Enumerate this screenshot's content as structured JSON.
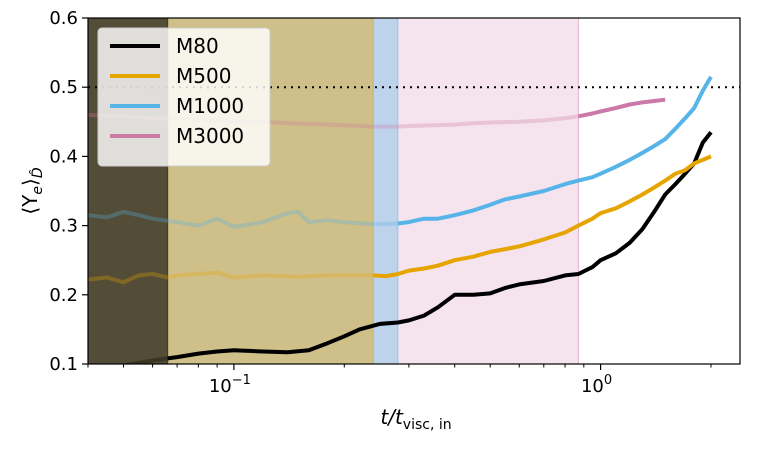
{
  "chart_data": {
    "type": "line",
    "xscale": "log",
    "xlim": [
      0.04,
      2.4
    ],
    "ylim": [
      0.1,
      0.6
    ],
    "xlabel_main": "t/t",
    "xlabel_sub": "visc, in",
    "ylabel_main": "⟨Y",
    "ylabel_sub_e": "e",
    "ylabel_sub_D": "D̂",
    "ylabel_close": "⟩",
    "x_ticks": [
      {
        "value": 0.1,
        "base": "10",
        "exp": "−1"
      },
      {
        "value": 1.0,
        "base": "10",
        "exp": "0"
      }
    ],
    "y_ticks": [
      "0.1",
      "0.2",
      "0.3",
      "0.4",
      "0.5",
      "0.6"
    ],
    "reference_line": {
      "y": 0.5,
      "style": "dotted",
      "color": "#000000"
    },
    "shaded_regions": [
      {
        "series": "M80",
        "x_end": 0.066,
        "color": "#000000",
        "opacity": 0.6
      },
      {
        "series": "M500",
        "x_end": 0.24,
        "color": "#e6a400",
        "opacity": 0.42
      },
      {
        "series": "M1000",
        "x_end": 0.28,
        "color": "#56b4e9",
        "opacity": 0.35
      },
      {
        "series": "M3000",
        "x_end": 0.87,
        "color": "#cc79a7",
        "opacity": 0.2
      }
    ],
    "series": [
      {
        "name": "M80",
        "color": "#000000",
        "points": [
          [
            0.04,
            0.093
          ],
          [
            0.05,
            0.098
          ],
          [
            0.06,
            0.105
          ],
          [
            0.07,
            0.11
          ],
          [
            0.08,
            0.115
          ],
          [
            0.09,
            0.118
          ],
          [
            0.1,
            0.12
          ],
          [
            0.12,
            0.118
          ],
          [
            0.14,
            0.117
          ],
          [
            0.16,
            0.12
          ],
          [
            0.18,
            0.13
          ],
          [
            0.2,
            0.14
          ],
          [
            0.22,
            0.15
          ],
          [
            0.25,
            0.158
          ],
          [
            0.28,
            0.16
          ],
          [
            0.3,
            0.163
          ],
          [
            0.33,
            0.17
          ],
          [
            0.36,
            0.182
          ],
          [
            0.4,
            0.2
          ],
          [
            0.45,
            0.2
          ],
          [
            0.5,
            0.202
          ],
          [
            0.55,
            0.21
          ],
          [
            0.6,
            0.215
          ],
          [
            0.7,
            0.22
          ],
          [
            0.8,
            0.228
          ],
          [
            0.87,
            0.23
          ],
          [
            0.95,
            0.24
          ],
          [
            1.0,
            0.25
          ],
          [
            1.1,
            0.26
          ],
          [
            1.2,
            0.275
          ],
          [
            1.3,
            0.295
          ],
          [
            1.4,
            0.32
          ],
          [
            1.5,
            0.345
          ],
          [
            1.6,
            0.36
          ],
          [
            1.7,
            0.375
          ],
          [
            1.8,
            0.39
          ],
          [
            1.9,
            0.42
          ],
          [
            2.0,
            0.435
          ]
        ]
      },
      {
        "name": "M500",
        "color": "#e6a400",
        "points": [
          [
            0.04,
            0.222
          ],
          [
            0.045,
            0.225
          ],
          [
            0.05,
            0.218
          ],
          [
            0.055,
            0.228
          ],
          [
            0.06,
            0.23
          ],
          [
            0.066,
            0.225
          ],
          [
            0.07,
            0.228
          ],
          [
            0.08,
            0.23
          ],
          [
            0.09,
            0.232
          ],
          [
            0.1,
            0.225
          ],
          [
            0.12,
            0.228
          ],
          [
            0.15,
            0.226
          ],
          [
            0.18,
            0.228
          ],
          [
            0.2,
            0.228
          ],
          [
            0.24,
            0.228
          ],
          [
            0.26,
            0.227
          ],
          [
            0.28,
            0.23
          ],
          [
            0.3,
            0.235
          ],
          [
            0.33,
            0.238
          ],
          [
            0.36,
            0.242
          ],
          [
            0.4,
            0.25
          ],
          [
            0.45,
            0.255
          ],
          [
            0.5,
            0.262
          ],
          [
            0.55,
            0.266
          ],
          [
            0.6,
            0.27
          ],
          [
            0.7,
            0.28
          ],
          [
            0.8,
            0.29
          ],
          [
            0.87,
            0.3
          ],
          [
            0.95,
            0.31
          ],
          [
            1.0,
            0.318
          ],
          [
            1.1,
            0.325
          ],
          [
            1.2,
            0.335
          ],
          [
            1.3,
            0.345
          ],
          [
            1.4,
            0.355
          ],
          [
            1.5,
            0.365
          ],
          [
            1.6,
            0.375
          ],
          [
            1.7,
            0.38
          ],
          [
            1.8,
            0.39
          ],
          [
            1.9,
            0.395
          ],
          [
            2.0,
            0.4
          ]
        ]
      },
      {
        "name": "M1000",
        "color": "#56b4e9",
        "points": [
          [
            0.04,
            0.315
          ],
          [
            0.045,
            0.312
          ],
          [
            0.05,
            0.32
          ],
          [
            0.055,
            0.315
          ],
          [
            0.06,
            0.31
          ],
          [
            0.07,
            0.305
          ],
          [
            0.08,
            0.3
          ],
          [
            0.09,
            0.31
          ],
          [
            0.1,
            0.298
          ],
          [
            0.12,
            0.305
          ],
          [
            0.14,
            0.318
          ],
          [
            0.15,
            0.32
          ],
          [
            0.16,
            0.305
          ],
          [
            0.18,
            0.308
          ],
          [
            0.2,
            0.305
          ],
          [
            0.24,
            0.302
          ],
          [
            0.28,
            0.303
          ],
          [
            0.3,
            0.305
          ],
          [
            0.33,
            0.31
          ],
          [
            0.36,
            0.31
          ],
          [
            0.4,
            0.315
          ],
          [
            0.45,
            0.322
          ],
          [
            0.5,
            0.33
          ],
          [
            0.55,
            0.338
          ],
          [
            0.6,
            0.342
          ],
          [
            0.7,
            0.35
          ],
          [
            0.8,
            0.36
          ],
          [
            0.87,
            0.365
          ],
          [
            0.95,
            0.37
          ],
          [
            1.0,
            0.375
          ],
          [
            1.1,
            0.385
          ],
          [
            1.2,
            0.395
          ],
          [
            1.3,
            0.405
          ],
          [
            1.4,
            0.415
          ],
          [
            1.5,
            0.425
          ],
          [
            1.6,
            0.44
          ],
          [
            1.7,
            0.455
          ],
          [
            1.8,
            0.47
          ],
          [
            1.9,
            0.495
          ],
          [
            2.0,
            0.515
          ]
        ]
      },
      {
        "name": "M3000",
        "color": "#cc79a7",
        "points": [
          [
            0.04,
            0.46
          ],
          [
            0.05,
            0.458
          ],
          [
            0.06,
            0.455
          ],
          [
            0.07,
            0.455
          ],
          [
            0.08,
            0.453
          ],
          [
            0.09,
            0.452
          ],
          [
            0.1,
            0.451
          ],
          [
            0.12,
            0.45
          ],
          [
            0.14,
            0.448
          ],
          [
            0.16,
            0.447
          ],
          [
            0.18,
            0.446
          ],
          [
            0.2,
            0.445
          ],
          [
            0.24,
            0.443
          ],
          [
            0.28,
            0.443
          ],
          [
            0.3,
            0.444
          ],
          [
            0.35,
            0.445
          ],
          [
            0.4,
            0.446
          ],
          [
            0.45,
            0.448
          ],
          [
            0.5,
            0.449
          ],
          [
            0.6,
            0.45
          ],
          [
            0.7,
            0.452
          ],
          [
            0.8,
            0.455
          ],
          [
            0.87,
            0.458
          ],
          [
            0.95,
            0.462
          ],
          [
            1.0,
            0.465
          ],
          [
            1.1,
            0.47
          ],
          [
            1.2,
            0.475
          ],
          [
            1.3,
            0.478
          ],
          [
            1.4,
            0.48
          ],
          [
            1.5,
            0.482
          ]
        ]
      }
    ],
    "legend": {
      "placement": "upper-left",
      "entries": [
        "M80",
        "M500",
        "M1000",
        "M3000"
      ]
    }
  }
}
